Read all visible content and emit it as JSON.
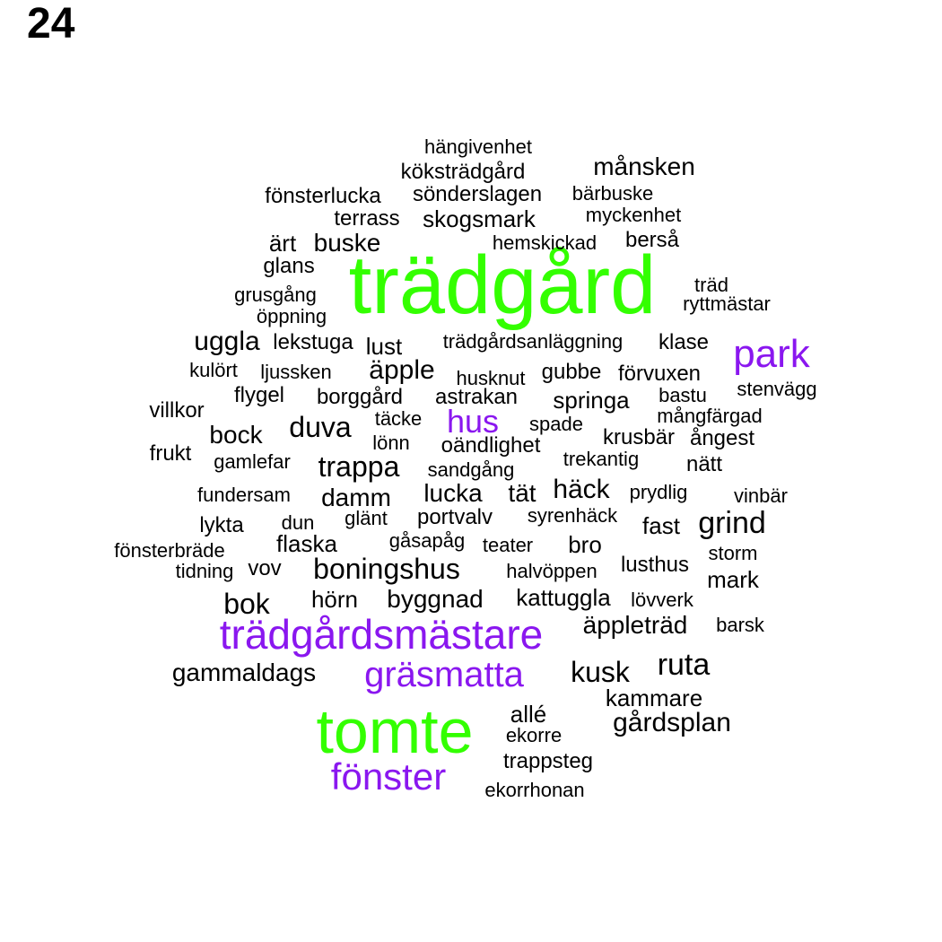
{
  "page_label": "24",
  "colors": {
    "tier1": "#33ff00",
    "tier2": "#8a17ef",
    "tier3": "#000000"
  },
  "words": [
    {
      "text": "trädgård",
      "tier": 1
    },
    {
      "text": "tomte",
      "tier": 1
    },
    {
      "text": "trädgårdsmästare",
      "tier": 2
    },
    {
      "text": "gräsmatta",
      "tier": 2
    },
    {
      "text": "fönster",
      "tier": 2
    },
    {
      "text": "park",
      "tier": 2
    },
    {
      "text": "hus",
      "tier": 2
    },
    {
      "text": "hängivenhet",
      "tier": 3
    },
    {
      "text": "köksträdgård",
      "tier": 3
    },
    {
      "text": "månsken",
      "tier": 3
    },
    {
      "text": "fönsterlucka",
      "tier": 3
    },
    {
      "text": "sönderslagen",
      "tier": 3
    },
    {
      "text": "bärbuske",
      "tier": 3
    },
    {
      "text": "terrass",
      "tier": 3
    },
    {
      "text": "skogsmark",
      "tier": 3
    },
    {
      "text": "myckenhet",
      "tier": 3
    },
    {
      "text": "ärt",
      "tier": 3
    },
    {
      "text": "buske",
      "tier": 3
    },
    {
      "text": "hemskickad",
      "tier": 3
    },
    {
      "text": "berså",
      "tier": 3
    },
    {
      "text": "glans",
      "tier": 3
    },
    {
      "text": "träd",
      "tier": 3
    },
    {
      "text": "grusgång",
      "tier": 3
    },
    {
      "text": "ryttmästar",
      "tier": 3
    },
    {
      "text": "öppning",
      "tier": 3
    },
    {
      "text": "uggla",
      "tier": 3
    },
    {
      "text": "lekstuga",
      "tier": 3
    },
    {
      "text": "lust",
      "tier": 3
    },
    {
      "text": "trädgårdsanläggning",
      "tier": 3
    },
    {
      "text": "klase",
      "tier": 3
    },
    {
      "text": "kulört",
      "tier": 3
    },
    {
      "text": "ljussken",
      "tier": 3
    },
    {
      "text": "äpple",
      "tier": 3
    },
    {
      "text": "husknut",
      "tier": 3
    },
    {
      "text": "gubbe",
      "tier": 3
    },
    {
      "text": "förvuxen",
      "tier": 3
    },
    {
      "text": "flygel",
      "tier": 3
    },
    {
      "text": "borggård",
      "tier": 3
    },
    {
      "text": "astrakan",
      "tier": 3
    },
    {
      "text": "springa",
      "tier": 3
    },
    {
      "text": "bastu",
      "tier": 3
    },
    {
      "text": "stenvägg",
      "tier": 3
    },
    {
      "text": "villkor",
      "tier": 3
    },
    {
      "text": "täcke",
      "tier": 3
    },
    {
      "text": "spade",
      "tier": 3
    },
    {
      "text": "mångfärgad",
      "tier": 3
    },
    {
      "text": "bock",
      "tier": 3
    },
    {
      "text": "duva",
      "tier": 3
    },
    {
      "text": "lönn",
      "tier": 3
    },
    {
      "text": "oändlighet",
      "tier": 3
    },
    {
      "text": "krusbär",
      "tier": 3
    },
    {
      "text": "ångest",
      "tier": 3
    },
    {
      "text": "frukt",
      "tier": 3
    },
    {
      "text": "gamlefar",
      "tier": 3
    },
    {
      "text": "trappa",
      "tier": 3
    },
    {
      "text": "sandgång",
      "tier": 3
    },
    {
      "text": "trekantig",
      "tier": 3
    },
    {
      "text": "nätt",
      "tier": 3
    },
    {
      "text": "fundersam",
      "tier": 3
    },
    {
      "text": "damm",
      "tier": 3
    },
    {
      "text": "lucka",
      "tier": 3
    },
    {
      "text": "tät",
      "tier": 3
    },
    {
      "text": "häck",
      "tier": 3
    },
    {
      "text": "prydlig",
      "tier": 3
    },
    {
      "text": "vinbär",
      "tier": 3
    },
    {
      "text": "lykta",
      "tier": 3
    },
    {
      "text": "dun",
      "tier": 3
    },
    {
      "text": "glänt",
      "tier": 3
    },
    {
      "text": "portvalv",
      "tier": 3
    },
    {
      "text": "syrenhäck",
      "tier": 3
    },
    {
      "text": "fast",
      "tier": 3
    },
    {
      "text": "grind",
      "tier": 3
    },
    {
      "text": "fönsterbräde",
      "tier": 3
    },
    {
      "text": "flaska",
      "tier": 3
    },
    {
      "text": "gåsapåg",
      "tier": 3
    },
    {
      "text": "teater",
      "tier": 3
    },
    {
      "text": "bro",
      "tier": 3
    },
    {
      "text": "storm",
      "tier": 3
    },
    {
      "text": "tidning",
      "tier": 3
    },
    {
      "text": "vov",
      "tier": 3
    },
    {
      "text": "boningshus",
      "tier": 3
    },
    {
      "text": "halvöppen",
      "tier": 3
    },
    {
      "text": "lusthus",
      "tier": 3
    },
    {
      "text": "mark",
      "tier": 3
    },
    {
      "text": "bok",
      "tier": 3
    },
    {
      "text": "hörn",
      "tier": 3
    },
    {
      "text": "byggnad",
      "tier": 3
    },
    {
      "text": "kattuggla",
      "tier": 3
    },
    {
      "text": "lövverk",
      "tier": 3
    },
    {
      "text": "äppleträd",
      "tier": 3
    },
    {
      "text": "barsk",
      "tier": 3
    },
    {
      "text": "gammaldags",
      "tier": 3
    },
    {
      "text": "kusk",
      "tier": 3
    },
    {
      "text": "ruta",
      "tier": 3
    },
    {
      "text": "kammare",
      "tier": 3
    },
    {
      "text": "allé",
      "tier": 3
    },
    {
      "text": "gårdsplan",
      "tier": 3
    },
    {
      "text": "ekorre",
      "tier": 3
    },
    {
      "text": "trappsteg",
      "tier": 3
    },
    {
      "text": "ekorrhonan",
      "tier": 3
    }
  ]
}
